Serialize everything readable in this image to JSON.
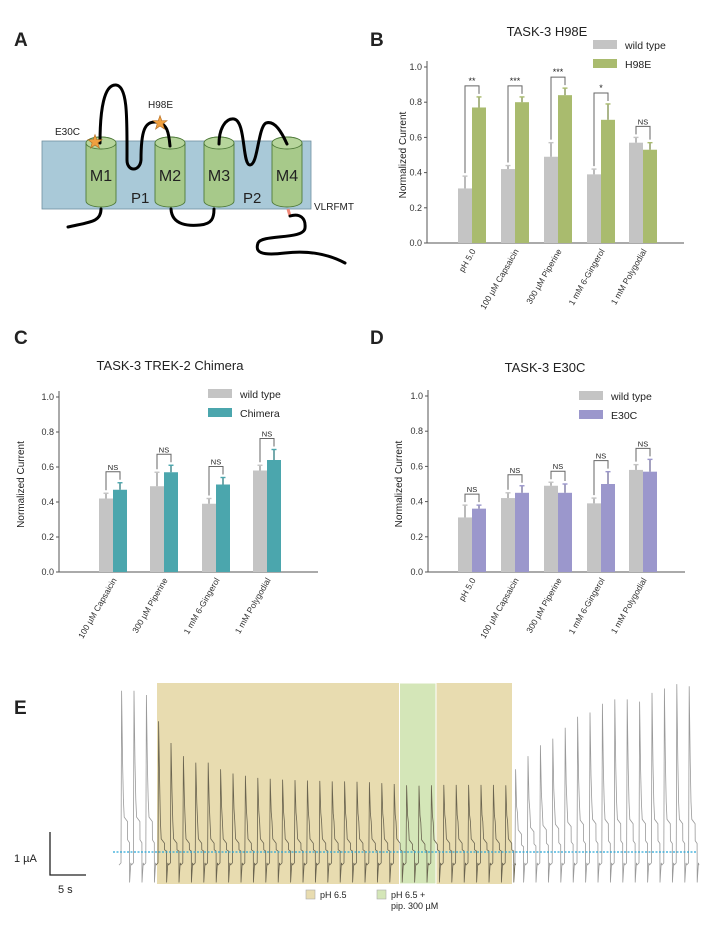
{
  "panels": {
    "A": {
      "letter": "A",
      "segments": [
        "M1",
        "M2",
        "M3",
        "M4"
      ],
      "pores": [
        "P1",
        "P2"
      ],
      "mutations": [
        "E30C",
        "H98E"
      ],
      "cterm_label": "VLRFMT",
      "colors": {
        "membrane": "#a9c9d8",
        "helix": "#a7c98a",
        "star": "#f0a040",
        "cterm": "#f08878"
      }
    },
    "B": {
      "letter": "B"
    },
    "C": {
      "letter": "C"
    },
    "D": {
      "letter": "D"
    },
    "E": {
      "letter": "E"
    }
  },
  "chart_data": [
    {
      "type": "bar",
      "panel": "B",
      "title": "TASK-3 H98E",
      "ylabel": "Normalized Current",
      "xlabel": "",
      "ylim": [
        0,
        1.0
      ],
      "yticks": [
        "0.0",
        "0.2",
        "0.4",
        "0.6",
        "0.8",
        "1.0"
      ],
      "grid": false,
      "legend_position": "top-right",
      "categories": [
        "pH 5.0",
        "100 µM Capsaicin",
        "300 µM Piperine",
        "1 mM 6-Gingerol",
        "1 mM Polygodial"
      ],
      "series": [
        {
          "name": "wild type",
          "color": "#c4c4c4",
          "values": [
            0.31,
            0.42,
            0.49,
            0.39,
            0.57
          ],
          "error_upper": [
            0.38,
            0.44,
            0.57,
            0.42,
            0.6
          ]
        },
        {
          "name": "H98E",
          "color": "#a9bb6e",
          "values": [
            0.77,
            0.8,
            0.84,
            0.7,
            0.53
          ],
          "error_upper": [
            0.83,
            0.83,
            0.88,
            0.79,
            0.57
          ]
        }
      ],
      "significance": [
        "**",
        "***",
        "***",
        "*",
        "NS"
      ]
    },
    {
      "type": "bar",
      "panel": "C",
      "title": "TASK-3 TREK-2 Chimera",
      "ylabel": "Normalized Current",
      "xlabel": "",
      "ylim": [
        0,
        1.0
      ],
      "yticks": [
        "0.0",
        "0.2",
        "0.4",
        "0.6",
        "0.8",
        "1.0"
      ],
      "grid": false,
      "legend_position": "top-right",
      "categories": [
        "100 µM Capsaicin",
        "300 µM Piperine",
        "1 mM 6-Gingerol",
        "1 mM Polygodial"
      ],
      "series": [
        {
          "name": "wild type",
          "color": "#c4c4c4",
          "values": [
            0.42,
            0.49,
            0.39,
            0.58
          ],
          "error_upper": [
            0.45,
            0.57,
            0.42,
            0.61
          ]
        },
        {
          "name": "Chimera",
          "color": "#4ba6ad",
          "values": [
            0.47,
            0.57,
            0.5,
            0.64
          ],
          "error_upper": [
            0.51,
            0.61,
            0.54,
            0.7
          ]
        }
      ],
      "significance": [
        "NS",
        "NS",
        "NS",
        "NS"
      ]
    },
    {
      "type": "bar",
      "panel": "D",
      "title": "TASK-3 E30C",
      "ylabel": "Normalized Current",
      "xlabel": "",
      "ylim": [
        0,
        1.0
      ],
      "yticks": [
        "0.0",
        "0.2",
        "0.4",
        "0.6",
        "0.8",
        "1.0"
      ],
      "grid": false,
      "legend_position": "top-right",
      "categories": [
        "pH 5.0",
        "100 µM Capsaicin",
        "300 µM Piperine",
        "1 mM 6-Gingerol",
        "1 mM Polygodial"
      ],
      "series": [
        {
          "name": "wild type",
          "color": "#c4c4c4",
          "values": [
            0.31,
            0.42,
            0.49,
            0.39,
            0.58
          ],
          "error_upper": [
            0.38,
            0.45,
            0.51,
            0.42,
            0.61
          ]
        },
        {
          "name": "E30C",
          "color": "#9b97cc",
          "values": [
            0.36,
            0.45,
            0.45,
            0.5,
            0.57
          ],
          "error_upper": [
            0.38,
            0.49,
            0.5,
            0.57,
            0.64
          ]
        }
      ],
      "significance": [
        "NS",
        "NS",
        "NS",
        "NS",
        "NS"
      ]
    },
    {
      "type": "line",
      "panel": "E",
      "scale_bar": {
        "current": "1 µA",
        "time": "5 s"
      },
      "baseline_color": "#2aa8d8",
      "legend": [
        {
          "label": "pH 6.5",
          "color": "#e8dcb0"
        },
        {
          "label_lines": [
            "pH 6.5 +",
            "pip. 300 µM"
          ],
          "color": "#d4e6b8"
        }
      ],
      "sweep_peak_amplitudes_uA": {
        "control_before": [
          3.7,
          3.7,
          3.6
        ],
        "ph65": [
          3.0,
          2.5,
          2.2,
          2.05,
          2.05,
          1.9,
          1.8,
          1.75,
          1.7,
          1.68,
          1.66,
          1.65,
          1.64,
          1.63,
          1.62,
          1.62,
          1.61,
          1.6,
          1.58,
          1.56
        ],
        "ph65_piperine": [
          1.53,
          1.52,
          1.53
        ],
        "ph65_after": [
          1.54,
          1.54,
          1.54,
          1.54,
          1.54,
          1.53
        ],
        "control_after": [
          1.9,
          2.2,
          2.45,
          2.6,
          2.85,
          3.1,
          3.2,
          3.4,
          3.5,
          3.5,
          3.45,
          3.65,
          3.75,
          3.85,
          3.8
        ]
      }
    }
  ]
}
